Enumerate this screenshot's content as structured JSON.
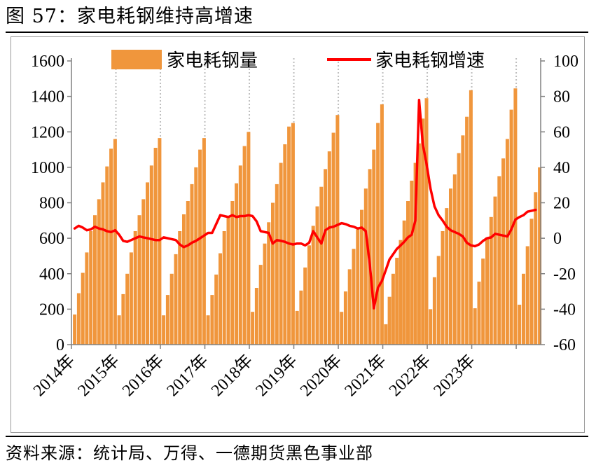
{
  "figure": {
    "title": "图 57：家电耗钢维持高增速",
    "source": "资料来源：统计局、万得、一德期货黑色事业部"
  },
  "colors": {
    "bar": "#F0963C",
    "line": "#FF0000",
    "axis": "#808080",
    "gridline": "#BFBFBF"
  },
  "chart_data": {
    "type": "bar",
    "title": "",
    "xlabel": "",
    "ylabel": "",
    "y_left": {
      "range": [
        0,
        1600
      ],
      "ticks": [
        "0",
        "200",
        "400",
        "600",
        "800",
        "1000",
        "1200",
        "1400",
        "1600"
      ]
    },
    "y_right": {
      "range": [
        -60,
        100
      ],
      "ticks": [
        "-60",
        "-40",
        "-20",
        "0",
        "20",
        "40",
        "60",
        "80",
        "100"
      ]
    },
    "x_tick_labels": [
      "2014年",
      "2015年",
      "2016年",
      "2017年",
      "2018年",
      "2019年",
      "2020年",
      "2021年",
      "2022年",
      "2023年"
    ],
    "legend": {
      "position": "top",
      "entries": [
        "家电耗钢量",
        "家电耗钢增速"
      ]
    },
    "vertical_dotted_gridlines_at_year_end": true,
    "series": [
      {
        "name": "家电耗钢量",
        "type": "bar",
        "axis": "left",
        "years": [
          {
            "year": "2014",
            "values": [
              170,
              290,
              405,
              520,
              640,
              730,
              820,
              915,
              1005,
              1105,
              1160
            ]
          },
          {
            "year": "2015",
            "values": [
              165,
              285,
              400,
              520,
              640,
              730,
              820,
              915,
              1010,
              1110,
              1165
            ]
          },
          {
            "year": "2016",
            "values": [
              165,
              280,
              400,
              510,
              640,
              735,
              810,
              905,
              1000,
              1100,
              1165
            ]
          },
          {
            "year": "2017",
            "values": [
              165,
              280,
              395,
              515,
              640,
              720,
              810,
              910,
              1010,
              1120,
              1200
            ]
          },
          {
            "year": "2018",
            "values": [
              185,
              320,
              450,
              570,
              690,
              800,
              905,
              1025,
              1130,
              1230,
              1250
            ]
          },
          {
            "year": "2019",
            "values": [
              190,
              305,
              435,
              560,
              670,
              780,
              890,
              990,
              1090,
              1195,
              1295
            ]
          },
          {
            "year": "2020",
            "values": [
              185,
              300,
              425,
              540,
              650,
              760,
              880,
              990,
              1100,
              1250,
              1355
            ]
          },
          {
            "year": "2021",
            "values": [
              115,
              270,
              400,
              490,
              590,
              700,
              810,
              925,
              1025,
              1135,
              1275,
              1390
            ]
          },
          {
            "year": "2022",
            "values": [
              200,
              380,
              500,
              640,
              770,
              880,
              960,
              1080,
              1180,
              1285,
              1435
            ]
          },
          {
            "year": "2023",
            "values": [
              205,
              355,
              485,
              605,
              720,
              835,
              950,
              1050,
              1160,
              1325,
              1445
            ]
          },
          {
            "year": "2024",
            "values": [
              225,
              400,
              555,
              710,
              860,
              1000
            ]
          }
        ]
      },
      {
        "name": "家电耗钢增速",
        "type": "line",
        "axis": "right",
        "values": [
          5.5,
          7.0,
          6.0,
          4.5,
          5.0,
          6.5,
          5.5,
          5.0,
          4.0,
          3.5,
          4.5,
          2.0,
          -1.5,
          -2.0,
          -1.0,
          0.0,
          1.0,
          0.5,
          0.0,
          -0.5,
          -1.0,
          -1.0,
          0.5,
          0.0,
          -0.5,
          -1.0,
          -3.5,
          -5.0,
          -4.0,
          -2.5,
          -1.5,
          0.0,
          1.5,
          3.0,
          3.0,
          8.0,
          13.0,
          12.5,
          12.0,
          13.0,
          12.0,
          12.5,
          12.5,
          13.0,
          12.5,
          9.5,
          4.0,
          3.5,
          3.0,
          -3.0,
          -1.0,
          -1.5,
          -2.0,
          -3.0,
          -3.5,
          -3.0,
          -3.0,
          -4.0,
          -2.5,
          4.0,
          0.5,
          -3.0,
          4.5,
          6.0,
          6.5,
          7.5,
          8.5,
          8.0,
          7.0,
          6.5,
          5.5,
          6.0,
          4.0,
          -15.0,
          -39.5,
          -28.0,
          -24.0,
          -18.0,
          -12.0,
          -9.0,
          -6.0,
          -4.0,
          -2.0,
          0.5,
          2.0,
          10.0,
          78.0,
          53.0,
          42.0,
          28.0,
          18.0,
          13.0,
          10.0,
          6.5,
          4.5,
          3.5,
          2.5,
          1.0,
          -2.5,
          -4.0,
          -4.5,
          -3.5,
          -1.5,
          0.0,
          0.5,
          2.5,
          2.0,
          1.5,
          1.0,
          5.0,
          10.5,
          12.0,
          13.0,
          15.0,
          15.5,
          16.0
        ]
      }
    ]
  }
}
